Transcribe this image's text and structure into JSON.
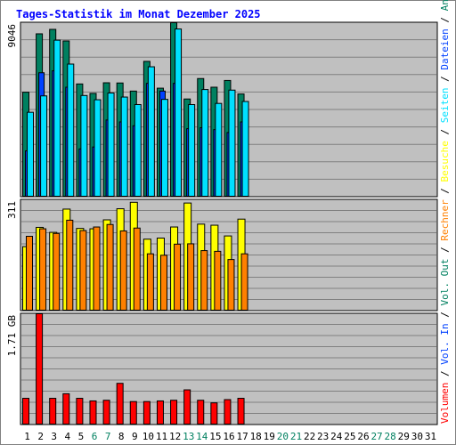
{
  "title": "Tages-Statistik im Monat Dezember 2025",
  "colors": {
    "background": "#c0c0c0",
    "title": "#0000ff",
    "anfragen": "#008060",
    "dateien": "#0040ff",
    "seiten": "#00e0ff",
    "besuche": "#ffff00",
    "rechner": "#ff8000",
    "volumen": "#ff0000",
    "vol_in": "#0040ff",
    "vol_out": "#008060",
    "weekend_label": "#008060",
    "day_label": "#000000"
  },
  "x_axis": {
    "days": [
      "1",
      "2",
      "3",
      "4",
      "5",
      "6",
      "7",
      "8",
      "9",
      "10",
      "11",
      "12",
      "13",
      "14",
      "15",
      "16",
      "17",
      "18",
      "19",
      "20",
      "21",
      "22",
      "23",
      "24",
      "25",
      "26",
      "27",
      "28",
      "29",
      "30",
      "31"
    ],
    "weekend_days": [
      "6",
      "7",
      "13",
      "14",
      "20",
      "21",
      "27",
      "28"
    ]
  },
  "right_labels": {
    "volumen": "Volumen",
    "vol_in": "Vol. In",
    "vol_out": "Vol. Out",
    "rechner": "Rechner",
    "besuche": "Besuche",
    "seiten": "Seiten",
    "dateien": "Dateien",
    "anfragen": "Anfragen",
    "sep": " / "
  },
  "chart_data": [
    {
      "type": "bar",
      "title": "Tages-Statistik im Monat Dezember 2025",
      "ylabel": "9046",
      "ylim": [
        0,
        9046
      ],
      "grid": true,
      "categories": [
        "1",
        "2",
        "3",
        "4",
        "5",
        "6",
        "7",
        "8",
        "9",
        "10",
        "11",
        "12",
        "13",
        "14",
        "15",
        "16",
        "17"
      ],
      "series": [
        {
          "name": "Anfragen",
          "values": [
            5440,
            8470,
            8700,
            8100,
            5870,
            5380,
            5930,
            5920,
            5500,
            7040,
            5650,
            9046,
            5090,
            6150,
            5700,
            6050,
            5350
          ]
        },
        {
          "name": "Dateien",
          "values": [
            2400,
            6450,
            6550,
            5700,
            2500,
            2600,
            4000,
            3900,
            3700,
            5900,
            5500,
            5900,
            3550,
            3600,
            3500,
            3350,
            3900
          ]
        },
        {
          "name": "Seiten",
          "values": [
            4400,
            5250,
            8140,
            6900,
            5270,
            5050,
            5400,
            5190,
            4800,
            6760,
            5070,
            8720,
            4800,
            5580,
            4860,
            5550,
            4960
          ]
        }
      ]
    },
    {
      "type": "bar",
      "ylabel": "311",
      "ylim": [
        0,
        311
      ],
      "grid": true,
      "categories": [
        "1",
        "2",
        "3",
        "4",
        "5",
        "6",
        "7",
        "8",
        "9",
        "10",
        "11",
        "12",
        "13",
        "14",
        "15",
        "16",
        "17"
      ],
      "series": [
        {
          "name": "Besuche",
          "values": [
            180,
            234,
            220,
            285,
            231,
            230,
            255,
            286,
            304,
            201,
            204,
            235,
            302,
            243,
            240,
            210,
            257
          ]
        },
        {
          "name": "Rechner",
          "values": [
            209,
            230,
            217,
            254,
            225,
            235,
            242,
            224,
            232,
            160,
            156,
            187,
            188,
            169,
            167,
            144,
            160
          ]
        }
      ]
    },
    {
      "type": "bar",
      "ylabel": "1.71 GB",
      "ylim": [
        0,
        1.71
      ],
      "unit": "GB",
      "grid": true,
      "categories": [
        "1",
        "2",
        "3",
        "4",
        "5",
        "6",
        "7",
        "8",
        "9",
        "10",
        "11",
        "12",
        "13",
        "14",
        "15",
        "16",
        "17"
      ],
      "series": [
        {
          "name": "Volumen",
          "values": [
            0.41,
            1.71,
            0.41,
            0.48,
            0.41,
            0.37,
            0.38,
            0.64,
            0.36,
            0.36,
            0.37,
            0.38,
            0.54,
            0.38,
            0.34,
            0.39,
            0.41
          ]
        },
        {
          "name": "Vol. In",
          "values": [
            0,
            0,
            0,
            0,
            0,
            0,
            0,
            0,
            0,
            0,
            0,
            0,
            0,
            0,
            0,
            0,
            0
          ]
        },
        {
          "name": "Vol. Out",
          "values": [
            0,
            0,
            0,
            0,
            0,
            0,
            0,
            0,
            0,
            0,
            0,
            0,
            0,
            0,
            0,
            0,
            0
          ]
        }
      ]
    }
  ]
}
